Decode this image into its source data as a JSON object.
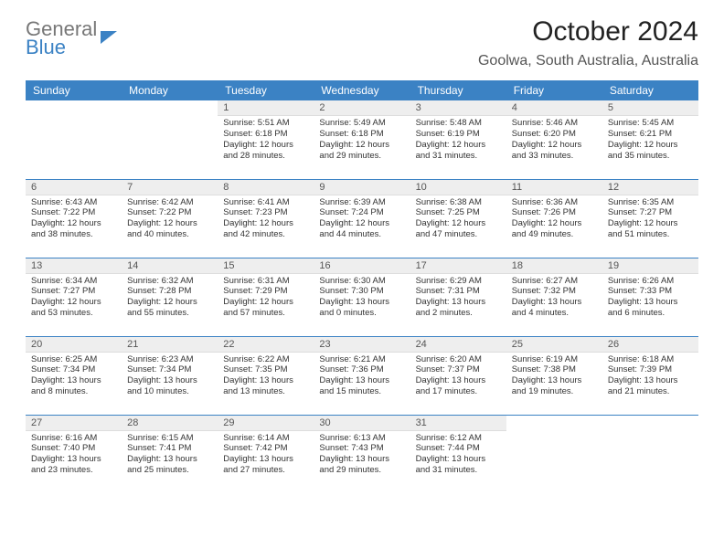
{
  "logo": {
    "line1": "General",
    "line2": "Blue"
  },
  "title": "October 2024",
  "subtitle": "Goolwa, South Australia, Australia",
  "headers": [
    "Sunday",
    "Monday",
    "Tuesday",
    "Wednesday",
    "Thursday",
    "Friday",
    "Saturday"
  ],
  "colors": {
    "header_bg": "#3b82c4",
    "header_fg": "#ffffff",
    "daynum_bg": "#eeeeee",
    "rule": "#3b82c4",
    "text": "#333333"
  },
  "font_sizes": {
    "title": 30,
    "subtitle": 16,
    "day_header": 12,
    "daynum": 11,
    "cell": 9.5
  },
  "grid": {
    "rows": 5,
    "cols": 7,
    "first_weekday_index": 2,
    "days_in_month": 31
  },
  "days": {
    "1": {
      "sunrise": "5:51 AM",
      "sunset": "6:18 PM",
      "daylight": "12 hours and 28 minutes."
    },
    "2": {
      "sunrise": "5:49 AM",
      "sunset": "6:18 PM",
      "daylight": "12 hours and 29 minutes."
    },
    "3": {
      "sunrise": "5:48 AM",
      "sunset": "6:19 PM",
      "daylight": "12 hours and 31 minutes."
    },
    "4": {
      "sunrise": "5:46 AM",
      "sunset": "6:20 PM",
      "daylight": "12 hours and 33 minutes."
    },
    "5": {
      "sunrise": "5:45 AM",
      "sunset": "6:21 PM",
      "daylight": "12 hours and 35 minutes."
    },
    "6": {
      "sunrise": "6:43 AM",
      "sunset": "7:22 PM",
      "daylight": "12 hours and 38 minutes."
    },
    "7": {
      "sunrise": "6:42 AM",
      "sunset": "7:22 PM",
      "daylight": "12 hours and 40 minutes."
    },
    "8": {
      "sunrise": "6:41 AM",
      "sunset": "7:23 PM",
      "daylight": "12 hours and 42 minutes."
    },
    "9": {
      "sunrise": "6:39 AM",
      "sunset": "7:24 PM",
      "daylight": "12 hours and 44 minutes."
    },
    "10": {
      "sunrise": "6:38 AM",
      "sunset": "7:25 PM",
      "daylight": "12 hours and 47 minutes."
    },
    "11": {
      "sunrise": "6:36 AM",
      "sunset": "7:26 PM",
      "daylight": "12 hours and 49 minutes."
    },
    "12": {
      "sunrise": "6:35 AM",
      "sunset": "7:27 PM",
      "daylight": "12 hours and 51 minutes."
    },
    "13": {
      "sunrise": "6:34 AM",
      "sunset": "7:27 PM",
      "daylight": "12 hours and 53 minutes."
    },
    "14": {
      "sunrise": "6:32 AM",
      "sunset": "7:28 PM",
      "daylight": "12 hours and 55 minutes."
    },
    "15": {
      "sunrise": "6:31 AM",
      "sunset": "7:29 PM",
      "daylight": "12 hours and 57 minutes."
    },
    "16": {
      "sunrise": "6:30 AM",
      "sunset": "7:30 PM",
      "daylight": "13 hours and 0 minutes."
    },
    "17": {
      "sunrise": "6:29 AM",
      "sunset": "7:31 PM",
      "daylight": "13 hours and 2 minutes."
    },
    "18": {
      "sunrise": "6:27 AM",
      "sunset": "7:32 PM",
      "daylight": "13 hours and 4 minutes."
    },
    "19": {
      "sunrise": "6:26 AM",
      "sunset": "7:33 PM",
      "daylight": "13 hours and 6 minutes."
    },
    "20": {
      "sunrise": "6:25 AM",
      "sunset": "7:34 PM",
      "daylight": "13 hours and 8 minutes."
    },
    "21": {
      "sunrise": "6:23 AM",
      "sunset": "7:34 PM",
      "daylight": "13 hours and 10 minutes."
    },
    "22": {
      "sunrise": "6:22 AM",
      "sunset": "7:35 PM",
      "daylight": "13 hours and 13 minutes."
    },
    "23": {
      "sunrise": "6:21 AM",
      "sunset": "7:36 PM",
      "daylight": "13 hours and 15 minutes."
    },
    "24": {
      "sunrise": "6:20 AM",
      "sunset": "7:37 PM",
      "daylight": "13 hours and 17 minutes."
    },
    "25": {
      "sunrise": "6:19 AM",
      "sunset": "7:38 PM",
      "daylight": "13 hours and 19 minutes."
    },
    "26": {
      "sunrise": "6:18 AM",
      "sunset": "7:39 PM",
      "daylight": "13 hours and 21 minutes."
    },
    "27": {
      "sunrise": "6:16 AM",
      "sunset": "7:40 PM",
      "daylight": "13 hours and 23 minutes."
    },
    "28": {
      "sunrise": "6:15 AM",
      "sunset": "7:41 PM",
      "daylight": "13 hours and 25 minutes."
    },
    "29": {
      "sunrise": "6:14 AM",
      "sunset": "7:42 PM",
      "daylight": "13 hours and 27 minutes."
    },
    "30": {
      "sunrise": "6:13 AM",
      "sunset": "7:43 PM",
      "daylight": "13 hours and 29 minutes."
    },
    "31": {
      "sunrise": "6:12 AM",
      "sunset": "7:44 PM",
      "daylight": "13 hours and 31 minutes."
    }
  },
  "labels": {
    "sunrise": "Sunrise: ",
    "sunset": "Sunset: ",
    "daylight": "Daylight: "
  }
}
